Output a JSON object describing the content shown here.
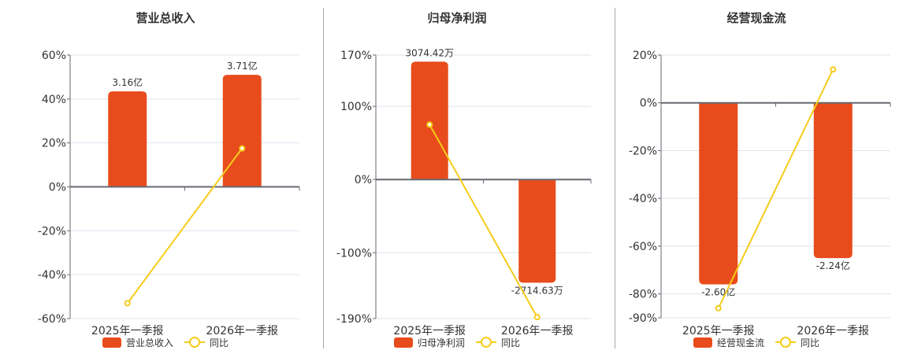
{
  "colors": {
    "bar": "#e84c1c",
    "line": "#f5cc1a",
    "grid": "#dde3ee",
    "axis": "#666a70"
  },
  "legend_common": {
    "yoy_label": "同比"
  },
  "chart_data": [
    {
      "type": "bar+line",
      "title": "营业总收入",
      "categories": [
        "2025年一季报",
        "2026年一季报"
      ],
      "series": [
        {
          "name": "营业总收入",
          "type": "bar",
          "values_pct_axis": [
            43.5,
            51
          ],
          "labels": [
            "3.16亿",
            "3.71亿"
          ]
        },
        {
          "name": "同比",
          "type": "line",
          "values": [
            -53,
            17.5
          ]
        }
      ],
      "yticks": [
        "60%",
        "40%",
        "20%",
        "0%",
        "-20%",
        "-40%",
        "-60%"
      ],
      "ylim": [
        -60,
        60
      ],
      "grid": true,
      "legend_position": "bottom"
    },
    {
      "type": "bar+line",
      "title": "归母净利润",
      "categories": [
        "2025年一季报",
        "2026年一季报"
      ],
      "series": [
        {
          "name": "归母净利润",
          "type": "bar",
          "values_pct_axis": [
            161,
            -141
          ],
          "labels": [
            "3074.42万",
            "-2714.63万"
          ]
        },
        {
          "name": "同比",
          "type": "line",
          "values": [
            75,
            -188
          ]
        }
      ],
      "yticks": [
        "170%",
        "100%",
        "0%",
        "-100%",
        "-190%"
      ],
      "ylim": [
        -190,
        170
      ],
      "grid": true,
      "legend_position": "bottom"
    },
    {
      "type": "bar+line",
      "title": "经营现金流",
      "categories": [
        "2025年一季报",
        "2026年一季报"
      ],
      "series": [
        {
          "name": "经营现金流",
          "type": "bar",
          "values_pct_axis": [
            -76,
            -65
          ],
          "labels": [
            "-2.60亿",
            "-2.24亿"
          ]
        },
        {
          "name": "同比",
          "type": "line",
          "values": [
            -86,
            14
          ]
        }
      ],
      "yticks": [
        "20%",
        "0%",
        "-20%",
        "-40%",
        "-60%",
        "-80%",
        "-90%"
      ],
      "ylim": [
        -90,
        20
      ],
      "grid": true,
      "legend_position": "bottom"
    }
  ]
}
